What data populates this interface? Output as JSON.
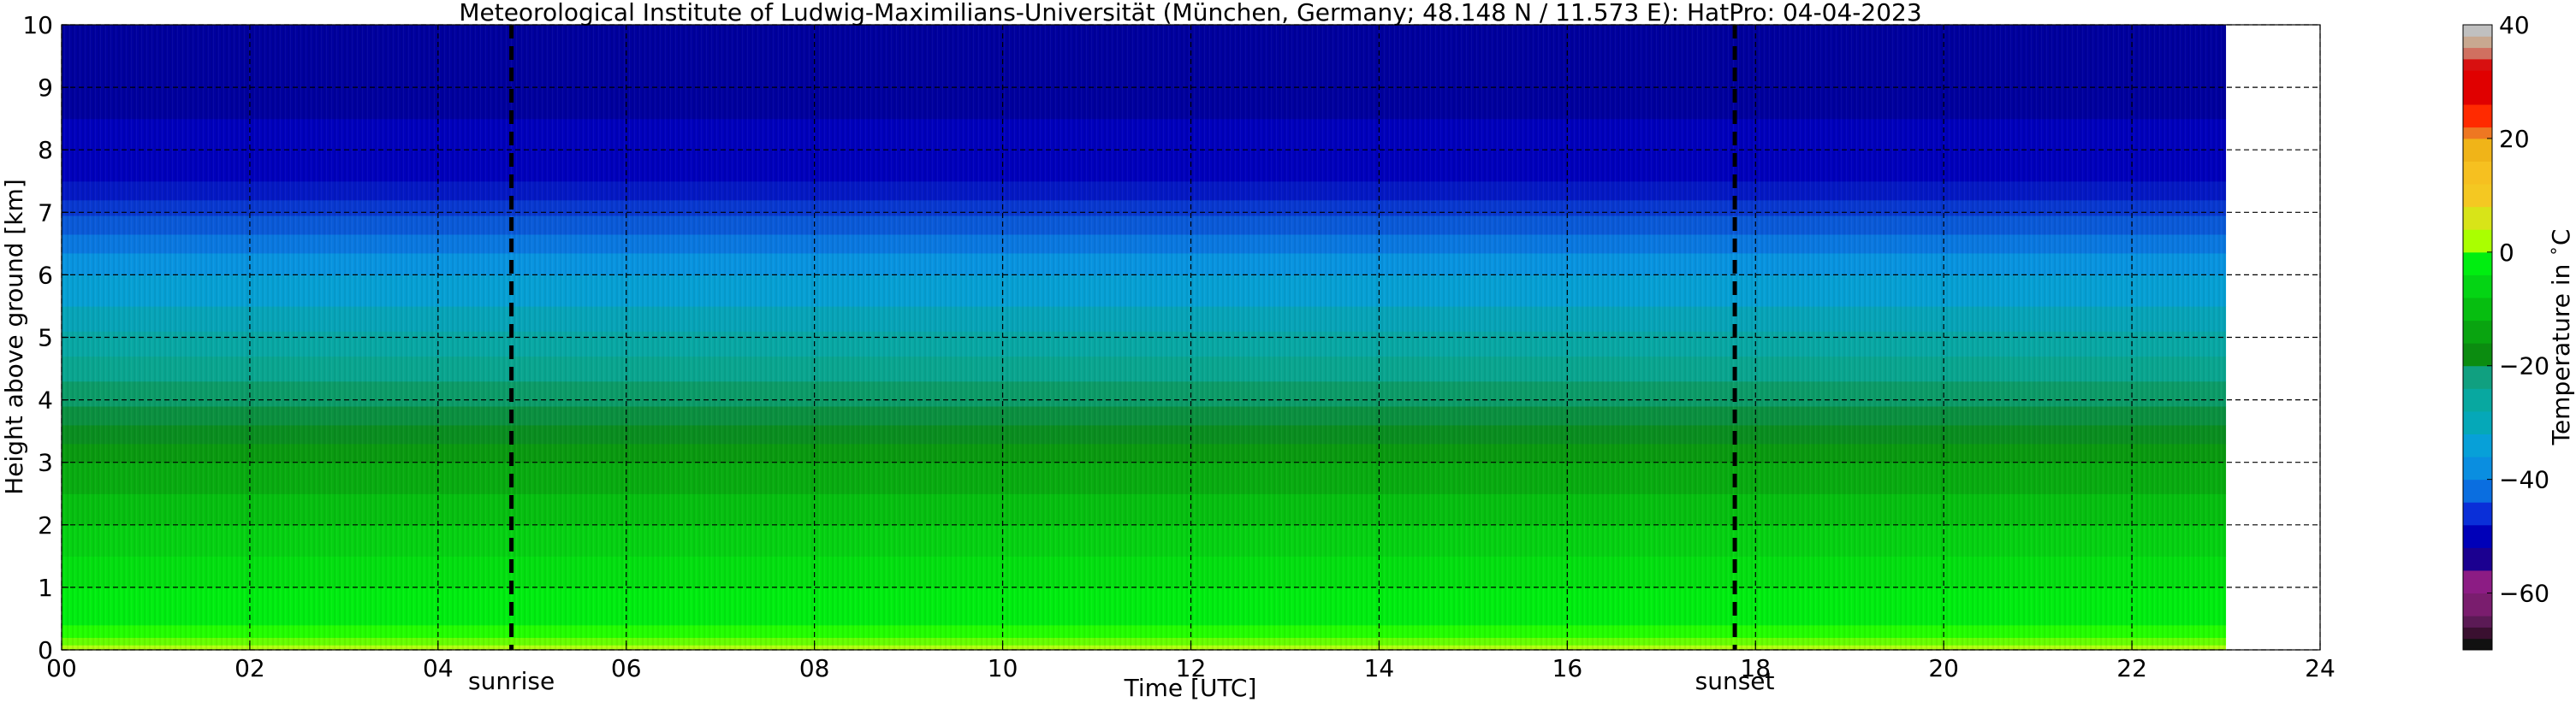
{
  "chart_data": {
    "type": "heatmap",
    "title": "Meteorological Institute of Ludwig-Maximilians-Universität (München, Germany; 48.148 N / 11.573 E):    HatPro: 04-04-2023",
    "xlabel": "Time [UTC]",
    "ylabel": "Height above ground [km]",
    "xlim": [
      0,
      24
    ],
    "ylim": [
      0,
      10
    ],
    "x_ticks": [
      "00",
      "02",
      "04",
      "06",
      "08",
      "10",
      "12",
      "14",
      "16",
      "18",
      "20",
      "22",
      "24"
    ],
    "y_ticks": [
      "0",
      "1",
      "2",
      "3",
      "4",
      "5",
      "6",
      "7",
      "8",
      "9",
      "10"
    ],
    "grid": true,
    "data_extent_hours": [
      0,
      23
    ],
    "annotations": [
      {
        "label": "sunrise",
        "x": 4.78
      },
      {
        "label": "sunset",
        "x": 17.78
      }
    ],
    "colorbar": {
      "label": "Temperature in $^\\circ$C",
      "ticks": [
        "−60",
        "−40",
        "−20",
        "0",
        "20",
        "40"
      ],
      "range": [
        -70,
        40
      ],
      "levels": [
        {
          "from": -70,
          "to": -68,
          "color": "#111111"
        },
        {
          "from": -68,
          "to": -66,
          "color": "#3a1030"
        },
        {
          "from": -66,
          "to": -64,
          "color": "#5b1a55"
        },
        {
          "from": -64,
          "to": -60,
          "color": "#7a1d6e"
        },
        {
          "from": -60,
          "to": -56,
          "color": "#8c1c84"
        },
        {
          "from": -56,
          "to": -52,
          "color": "#1b0090"
        },
        {
          "from": -52,
          "to": -48,
          "color": "#0000b8"
        },
        {
          "from": -48,
          "to": -44,
          "color": "#0a2fd8"
        },
        {
          "from": -44,
          "to": -40,
          "color": "#0a6ee0"
        },
        {
          "from": -40,
          "to": -36,
          "color": "#0a8ee0"
        },
        {
          "from": -36,
          "to": -32,
          "color": "#07a0d8"
        },
        {
          "from": -32,
          "to": -28,
          "color": "#05a8b8"
        },
        {
          "from": -28,
          "to": -24,
          "color": "#08a8a0"
        },
        {
          "from": -24,
          "to": -20,
          "color": "#10a080"
        },
        {
          "from": -20,
          "to": -16,
          "color": "#0b8c10"
        },
        {
          "from": -16,
          "to": -12,
          "color": "#09a410"
        },
        {
          "from": -12,
          "to": -8,
          "color": "#06be10"
        },
        {
          "from": -8,
          "to": -4,
          "color": "#04d414"
        },
        {
          "from": -4,
          "to": 0,
          "color": "#00ee10"
        },
        {
          "from": 0,
          "to": 4,
          "color": "#aaff00"
        },
        {
          "from": 4,
          "to": 8,
          "color": "#d8e418"
        },
        {
          "from": 8,
          "to": 12,
          "color": "#f4c822"
        },
        {
          "from": 12,
          "to": 16,
          "color": "#f6c020"
        },
        {
          "from": 16,
          "to": 20,
          "color": "#f0b418"
        },
        {
          "from": 20,
          "to": 22,
          "color": "#ee7722"
        },
        {
          "from": 22,
          "to": 26,
          "color": "#ff2a00"
        },
        {
          "from": 26,
          "to": 32,
          "color": "#e00000"
        },
        {
          "from": 32,
          "to": 34,
          "color": "#d81010"
        },
        {
          "from": 34,
          "to": 36,
          "color": "#d07060"
        },
        {
          "from": 36,
          "to": 38,
          "color": "#c8a890"
        },
        {
          "from": 38,
          "to": 40,
          "color": "#c0c0c0"
        }
      ]
    },
    "height_bands": [
      {
        "from": 0.0,
        "to": 0.08,
        "color": "#b0ff10"
      },
      {
        "from": 0.08,
        "to": 0.2,
        "color": "#66ff00"
      },
      {
        "from": 0.2,
        "to": 0.4,
        "color": "#22ff00"
      },
      {
        "from": 0.4,
        "to": 1.0,
        "color": "#00ee10"
      },
      {
        "from": 1.0,
        "to": 1.5,
        "color": "#03e010"
      },
      {
        "from": 1.5,
        "to": 2.0,
        "color": "#05d212"
      },
      {
        "from": 2.0,
        "to": 2.5,
        "color": "#06c010"
      },
      {
        "from": 2.5,
        "to": 3.0,
        "color": "#08ac10"
      },
      {
        "from": 3.0,
        "to": 3.3,
        "color": "#0a9a10"
      },
      {
        "from": 3.3,
        "to": 3.6,
        "color": "#0a8e20"
      },
      {
        "from": 3.6,
        "to": 3.9,
        "color": "#0b9040"
      },
      {
        "from": 3.9,
        "to": 4.3,
        "color": "#0c9c68"
      },
      {
        "from": 4.3,
        "to": 4.7,
        "color": "#0aa690"
      },
      {
        "from": 4.7,
        "to": 5.1,
        "color": "#08a8a4"
      },
      {
        "from": 5.1,
        "to": 5.5,
        "color": "#07a4b8"
      },
      {
        "from": 5.5,
        "to": 6.0,
        "color": "#06a0d4"
      },
      {
        "from": 6.0,
        "to": 6.35,
        "color": "#0894e0"
      },
      {
        "from": 6.35,
        "to": 6.65,
        "color": "#0a78e0"
      },
      {
        "from": 6.65,
        "to": 6.95,
        "color": "#0a5ad8"
      },
      {
        "from": 6.95,
        "to": 7.2,
        "color": "#0838d0"
      },
      {
        "from": 7.2,
        "to": 7.5,
        "color": "#0418c4"
      },
      {
        "from": 7.5,
        "to": 8.5,
        "color": "#0000bc"
      },
      {
        "from": 8.5,
        "to": 10.0,
        "color": "#00009e"
      }
    ]
  }
}
